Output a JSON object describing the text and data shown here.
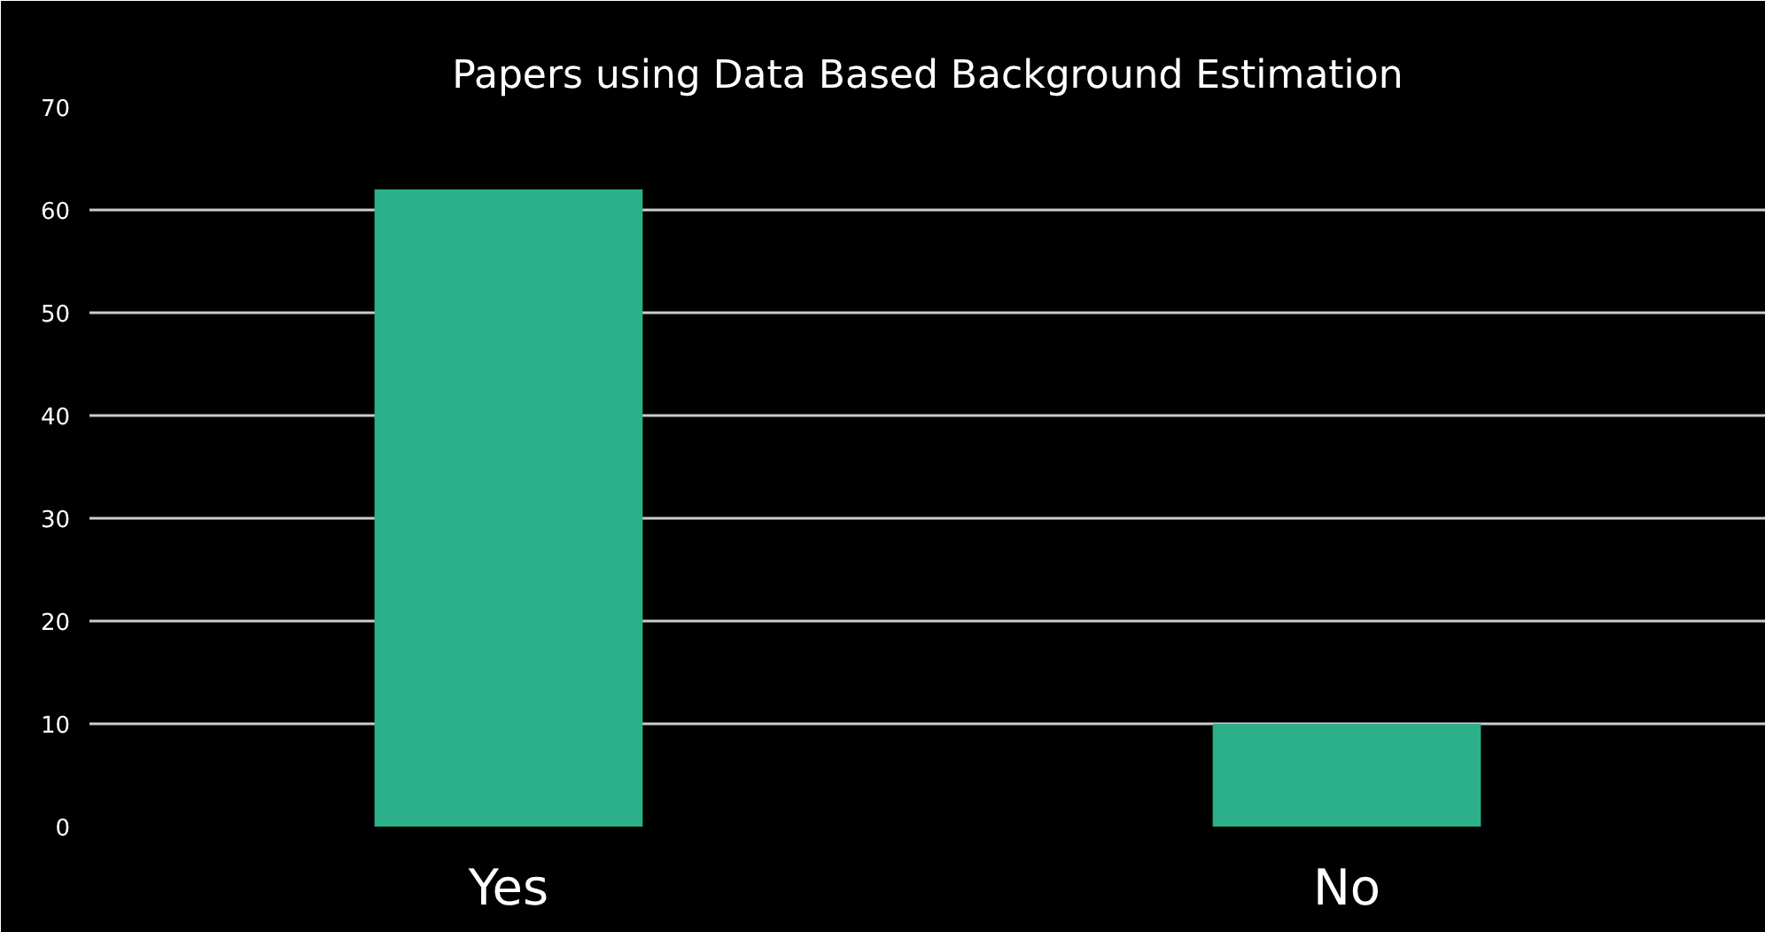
{
  "chart_data": {
    "type": "bar",
    "title": "Papers using Data Based Background Estimation",
    "categories": [
      "Yes",
      "No"
    ],
    "values": [
      62,
      10
    ],
    "color": "#2bb08a",
    "ylim": [
      0,
      70
    ],
    "yticks": [
      0,
      10,
      20,
      30,
      40,
      50,
      60,
      70
    ],
    "grid": "y"
  }
}
